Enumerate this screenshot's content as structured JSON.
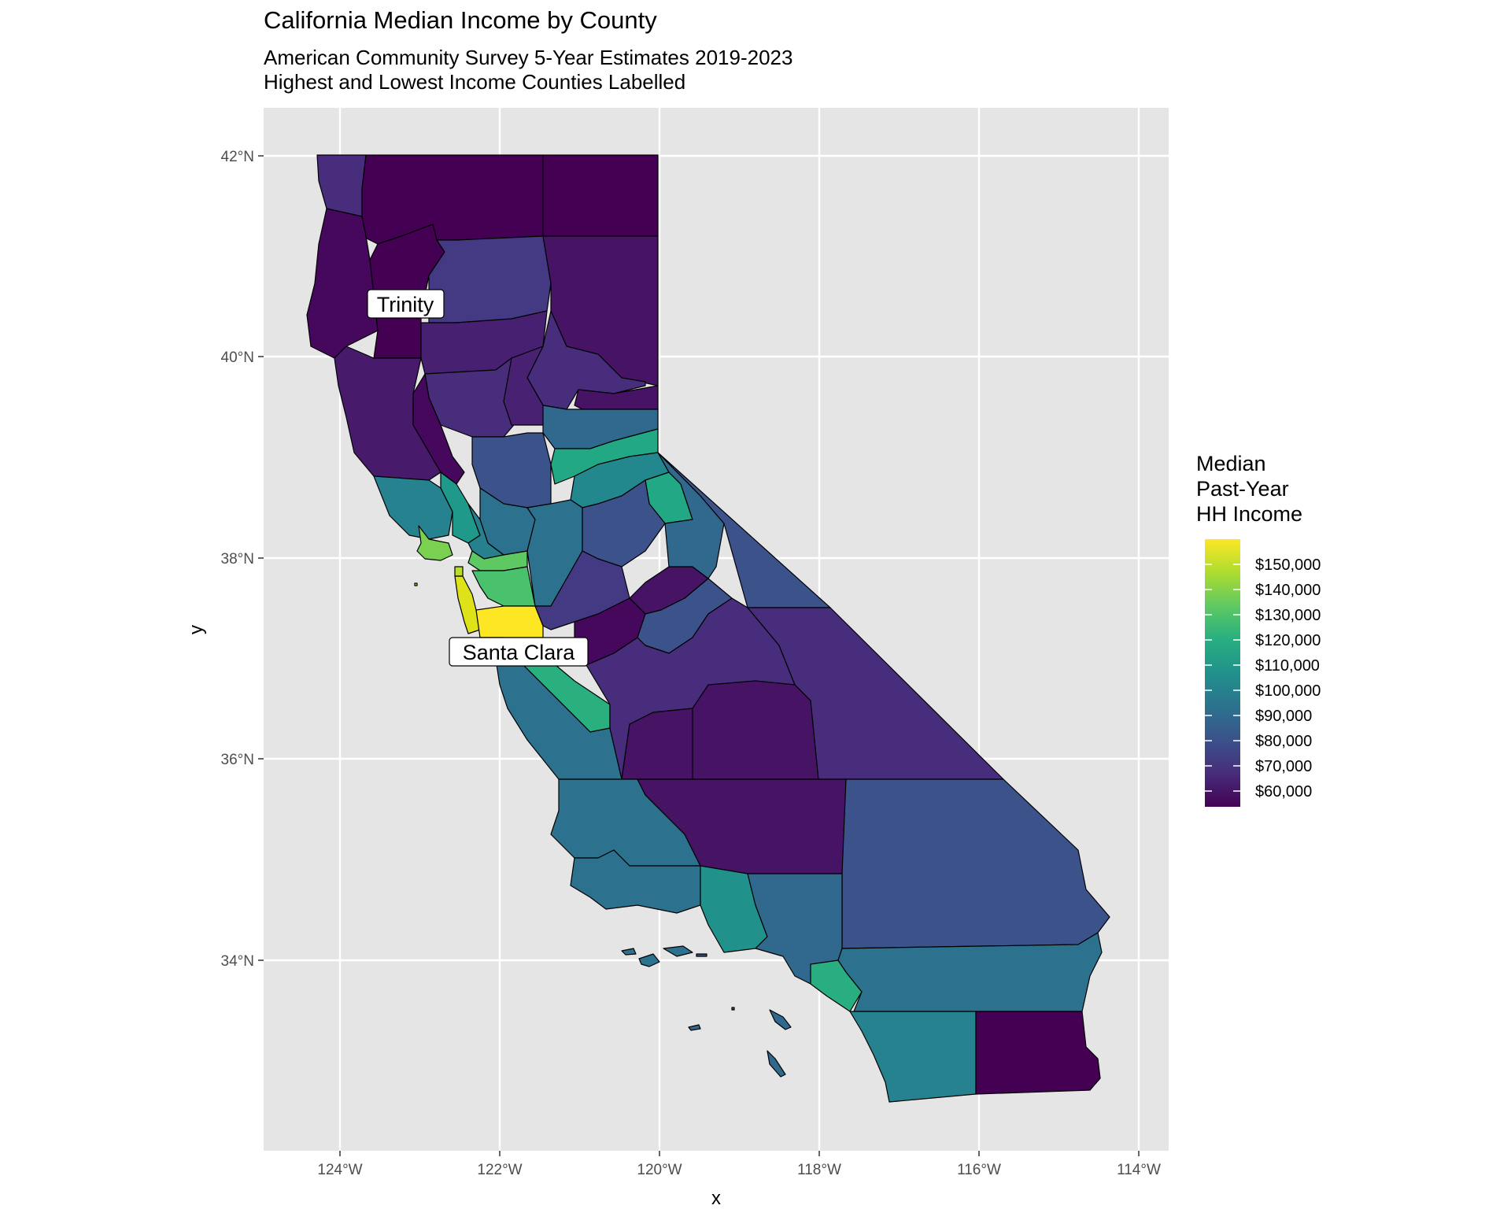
{
  "title": "California Median Income by County",
  "subtitle_lines": [
    "American Community Survey 5-Year Estimates 2019-2023",
    "Highest and Lowest Income Counties Labelled"
  ],
  "axis": {
    "x_label": "x",
    "y_label": "y",
    "x_ticks": [
      "124°W",
      "122°W",
      "120°W",
      "118°W",
      "116°W",
      "114°W"
    ],
    "y_ticks": [
      "42°N",
      "40°N",
      "38°N",
      "36°N",
      "34°N"
    ]
  },
  "legend": {
    "title_lines": [
      "Median",
      "Past-Year",
      "HH Income"
    ],
    "labels": [
      "$150,000",
      "$140,000",
      "$130,000",
      "$120,000",
      "$110,000",
      "$100,000",
      "$90,000",
      "$80,000",
      "$70,000",
      "$60,000"
    ],
    "colors": [
      "#fde725",
      "#440154"
    ]
  },
  "annotations": [
    "Trinity",
    "Santa Clara"
  ],
  "colors": {
    "panel_background": "#e5e5e5",
    "gridline": "#ffffff",
    "lowest": "#440154",
    "highest": "#fde725"
  },
  "chart_data": {
    "type": "map",
    "region": "California counties",
    "x_range_deg": [
      -125,
      -113.7
    ],
    "y_range_deg": [
      32.2,
      42.5
    ],
    "color_scale": "viridis",
    "scale_range": [
      55000,
      160000
    ],
    "highlighted_counties": [
      {
        "name": "Trinity",
        "rank": "lowest"
      },
      {
        "name": "Santa Clara",
        "rank": "highest"
      }
    ]
  }
}
